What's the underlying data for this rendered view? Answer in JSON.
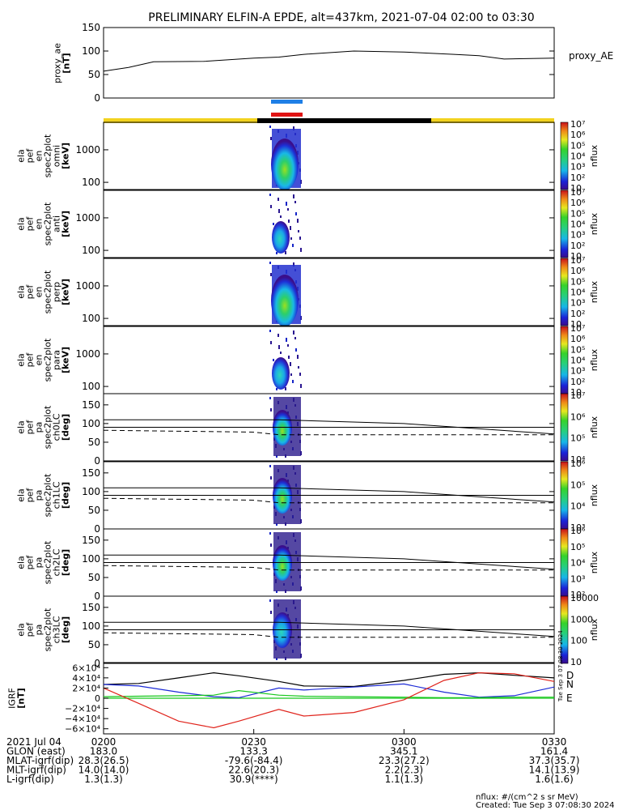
{
  "title": "PRELIMINARY ELFIN-A EPDE, alt=437km, 2021-07-04 02:00 to 03:30",
  "colors": {
    "bar_blue": "#1f7fe6",
    "bar_red": "#e01414",
    "bar_yellow": "#f2d21e",
    "bar_black": "#000000",
    "bx": "#e0241c",
    "by": "#1d2bd6",
    "bz": "#17c81d",
    "btot": "#000000"
  },
  "chart_data": [
    {
      "type": "line",
      "panel": "proxy_ae",
      "ylabel_lines": [
        "proxy_ae",
        "[nT]"
      ],
      "legend": "proxy_AE",
      "ylim": [
        0,
        150
      ],
      "yticks": [
        "0",
        "50",
        "100",
        "150"
      ],
      "x_minutes": [
        0,
        5,
        10,
        20,
        30,
        35,
        40,
        50,
        60,
        70,
        75,
        80,
        90
      ],
      "values": [
        57,
        65,
        77,
        78,
        85,
        87,
        93,
        100,
        98,
        93,
        90,
        83,
        85
      ]
    },
    {
      "type": "heatmap",
      "panel": "spec_omni",
      "ylabel_lines": [
        "ela",
        "pef",
        "en",
        "spec2plot",
        "omni",
        "[keV]"
      ],
      "yscale": "log",
      "ylim": [
        60,
        7000
      ],
      "yticks": [
        "100",
        "1000"
      ],
      "colorbar": {
        "label": "nflux",
        "ticks": [
          "10",
          "10²",
          "10³",
          "10⁴",
          "10⁵",
          "10⁶",
          "10⁷"
        ]
      }
    },
    {
      "type": "heatmap",
      "panel": "spec_anti",
      "ylabel_lines": [
        "ela",
        "pef",
        "en",
        "spec2plot",
        "anti",
        "[keV]"
      ],
      "yscale": "log",
      "ylim": [
        60,
        7000
      ],
      "yticks": [
        "100",
        "1000"
      ],
      "colorbar": {
        "label": "nflux",
        "ticks": [
          "10",
          "10²",
          "10³",
          "10⁴",
          "10⁵",
          "10⁶",
          "10⁷"
        ]
      }
    },
    {
      "type": "heatmap",
      "panel": "spec_perp",
      "ylabel_lines": [
        "ela",
        "pef",
        "en",
        "spec2plot",
        "perp",
        "[keV]"
      ],
      "yscale": "log",
      "ylim": [
        60,
        7000
      ],
      "yticks": [
        "100",
        "1000"
      ],
      "colorbar": {
        "label": "nflux",
        "ticks": [
          "10",
          "10²",
          "10³",
          "10⁴",
          "10⁵",
          "10⁶",
          "10⁷"
        ]
      }
    },
    {
      "type": "heatmap",
      "panel": "spec_para",
      "ylabel_lines": [
        "ela",
        "pef",
        "en",
        "spec2plot",
        "para",
        "[keV]"
      ],
      "yscale": "log",
      "ylim": [
        60,
        7000
      ],
      "yticks": [
        "100",
        "1000"
      ],
      "colorbar": {
        "label": "nflux",
        "ticks": [
          "10",
          "10²",
          "10³",
          "10⁴",
          "10⁵",
          "10⁶",
          "10⁷"
        ]
      }
    },
    {
      "type": "heatmap",
      "panel": "pa_ch0LC",
      "ylabel_lines": [
        "ela",
        "pef",
        "pa",
        "spec2plot",
        "ch0LC",
        "[deg]"
      ],
      "ylim": [
        0,
        180
      ],
      "yticks": [
        "0",
        "50",
        "100",
        "150"
      ],
      "colorbar": {
        "label": "nflux",
        "ticks": [
          "10⁴",
          "10⁵",
          "10⁶",
          "10⁷"
        ]
      },
      "lc_solid": [
        {
          "x": 0,
          "y": 110
        },
        {
          "x": 35,
          "y": 110
        },
        {
          "x": 60,
          "y": 100
        },
        {
          "x": 90,
          "y": 72
        }
      ],
      "lc_dashed": [
        {
          "x": 0,
          "y": 82
        },
        {
          "x": 30,
          "y": 77
        },
        {
          "x": 35,
          "y": 70
        },
        {
          "x": 90,
          "y": 70
        }
      ],
      "hline": 90
    },
    {
      "type": "heatmap",
      "panel": "pa_ch1LC",
      "ylabel_lines": [
        "ela",
        "pef",
        "pa",
        "spec2plot",
        "ch1LC",
        "[deg]"
      ],
      "ylim": [
        0,
        180
      ],
      "yticks": [
        "0",
        "50",
        "100",
        "150"
      ],
      "colorbar": {
        "label": "nflux",
        "ticks": [
          "10³",
          "10⁴",
          "10⁵",
          "10⁶"
        ]
      },
      "lc_solid": [
        {
          "x": 0,
          "y": 110
        },
        {
          "x": 35,
          "y": 110
        },
        {
          "x": 60,
          "y": 100
        },
        {
          "x": 90,
          "y": 72
        }
      ],
      "lc_dashed": [
        {
          "x": 0,
          "y": 82
        },
        {
          "x": 30,
          "y": 77
        },
        {
          "x": 35,
          "y": 70
        },
        {
          "x": 90,
          "y": 70
        }
      ],
      "hline": 90
    },
    {
      "type": "heatmap",
      "panel": "pa_ch2LC",
      "ylabel_lines": [
        "ela",
        "pef",
        "pa",
        "spec2plot",
        "ch2LC",
        "[deg]"
      ],
      "ylim": [
        0,
        180
      ],
      "yticks": [
        "0",
        "50",
        "100",
        "150"
      ],
      "colorbar": {
        "label": "nflux",
        "ticks": [
          "10²",
          "10³",
          "10⁴",
          "10⁵",
          "10⁶"
        ]
      },
      "lc_solid": [
        {
          "x": 0,
          "y": 110
        },
        {
          "x": 35,
          "y": 110
        },
        {
          "x": 60,
          "y": 100
        },
        {
          "x": 90,
          "y": 72
        }
      ],
      "lc_dashed": [
        {
          "x": 0,
          "y": 82
        },
        {
          "x": 30,
          "y": 77
        },
        {
          "x": 35,
          "y": 70
        },
        {
          "x": 90,
          "y": 70
        }
      ],
      "hline": 90
    },
    {
      "type": "heatmap",
      "panel": "pa_ch3LC",
      "ylabel_lines": [
        "ela",
        "pef",
        "pa",
        "spec2plot",
        "ch3LC",
        "[deg]"
      ],
      "ylim": [
        0,
        180
      ],
      "yticks": [
        "0",
        "50",
        "100",
        "150"
      ],
      "colorbar": {
        "label": "nflux",
        "ticks": [
          "10",
          "100",
          "1000",
          "10000"
        ]
      },
      "lc_solid": [
        {
          "x": 0,
          "y": 110
        },
        {
          "x": 35,
          "y": 110
        },
        {
          "x": 60,
          "y": 100
        },
        {
          "x": 90,
          "y": 72
        }
      ],
      "lc_dashed": [
        {
          "x": 0,
          "y": 82
        },
        {
          "x": 30,
          "y": 77
        },
        {
          "x": 35,
          "y": 70
        },
        {
          "x": 90,
          "y": 70
        }
      ],
      "hline": 90
    },
    {
      "type": "line",
      "panel": "igrf",
      "ylabel_lines": [
        "IGRF",
        "[nT]"
      ],
      "ylim": [
        -70000,
        70000
      ],
      "yticks": [
        "6×10⁴",
        "4×10⁴",
        "2×10⁴",
        "0",
        "−2×10⁴",
        "−4×10⁴",
        "−6×10⁴"
      ],
      "ytick_values": [
        60000,
        40000,
        20000,
        0,
        -20000,
        -40000,
        -60000
      ],
      "x_minutes": [
        0,
        7,
        15,
        22,
        27,
        35,
        40,
        50,
        60,
        68,
        75,
        82,
        90
      ],
      "series": [
        {
          "key": "btot",
          "values": [
            27000,
            29000,
            40000,
            50000,
            44000,
            33000,
            24000,
            23000,
            35000,
            47000,
            50000,
            45000,
            40000
          ]
        },
        {
          "key": "by",
          "values": [
            27000,
            24000,
            12000,
            3000,
            1000,
            20000,
            16000,
            22000,
            28000,
            12000,
            2000,
            5000,
            22000
          ]
        },
        {
          "key": "bz",
          "values": [
            3000,
            4000,
            5000,
            6000,
            15000,
            6000,
            4000,
            3000,
            2000,
            1000,
            1000,
            2000,
            2000
          ]
        },
        {
          "key": "bx",
          "values": [
            20000,
            -10000,
            -45000,
            -58000,
            -45000,
            -22000,
            -35000,
            -28000,
            -3000,
            35000,
            50000,
            48000,
            33000
          ]
        }
      ],
      "side_labels": [
        "D",
        "N",
        "E"
      ]
    }
  ],
  "xaxis": {
    "ticks": [
      "0200",
      "0230",
      "0300",
      "0330"
    ],
    "rows": [
      {
        "label": "2021 Jul 04",
        "values": [
          "0200",
          "0230",
          "0300",
          "0330"
        ]
      },
      {
        "label": "GLON (east)",
        "values": [
          "183.0",
          "133.3",
          "345.1",
          "161.4"
        ]
      },
      {
        "label": "MLAT-igrf(dip)",
        "values": [
          "28.3(26.5)",
          "-79.6(-84.4)",
          "23.3(27.2)",
          "37.3(35.7)"
        ]
      },
      {
        "label": "MLT-igrf(dip)",
        "values": [
          "14.0(14.0)",
          "22.6(20.3)",
          "2.2(2.3)",
          "14.1(13.9)"
        ]
      },
      {
        "label": "L-igrf(dip)",
        "values": [
          "1.3(1.3)",
          "30.9(****)",
          "1.1(1.3)",
          "1.6(1.6)"
        ]
      }
    ]
  },
  "footer": {
    "units": "nflux: #/(cm^2 s sr MeV)",
    "created": "Created: Tue Sep  3 07:08:30 2024",
    "stamp": "Tue Sep  3 07:08:30 2024"
  }
}
